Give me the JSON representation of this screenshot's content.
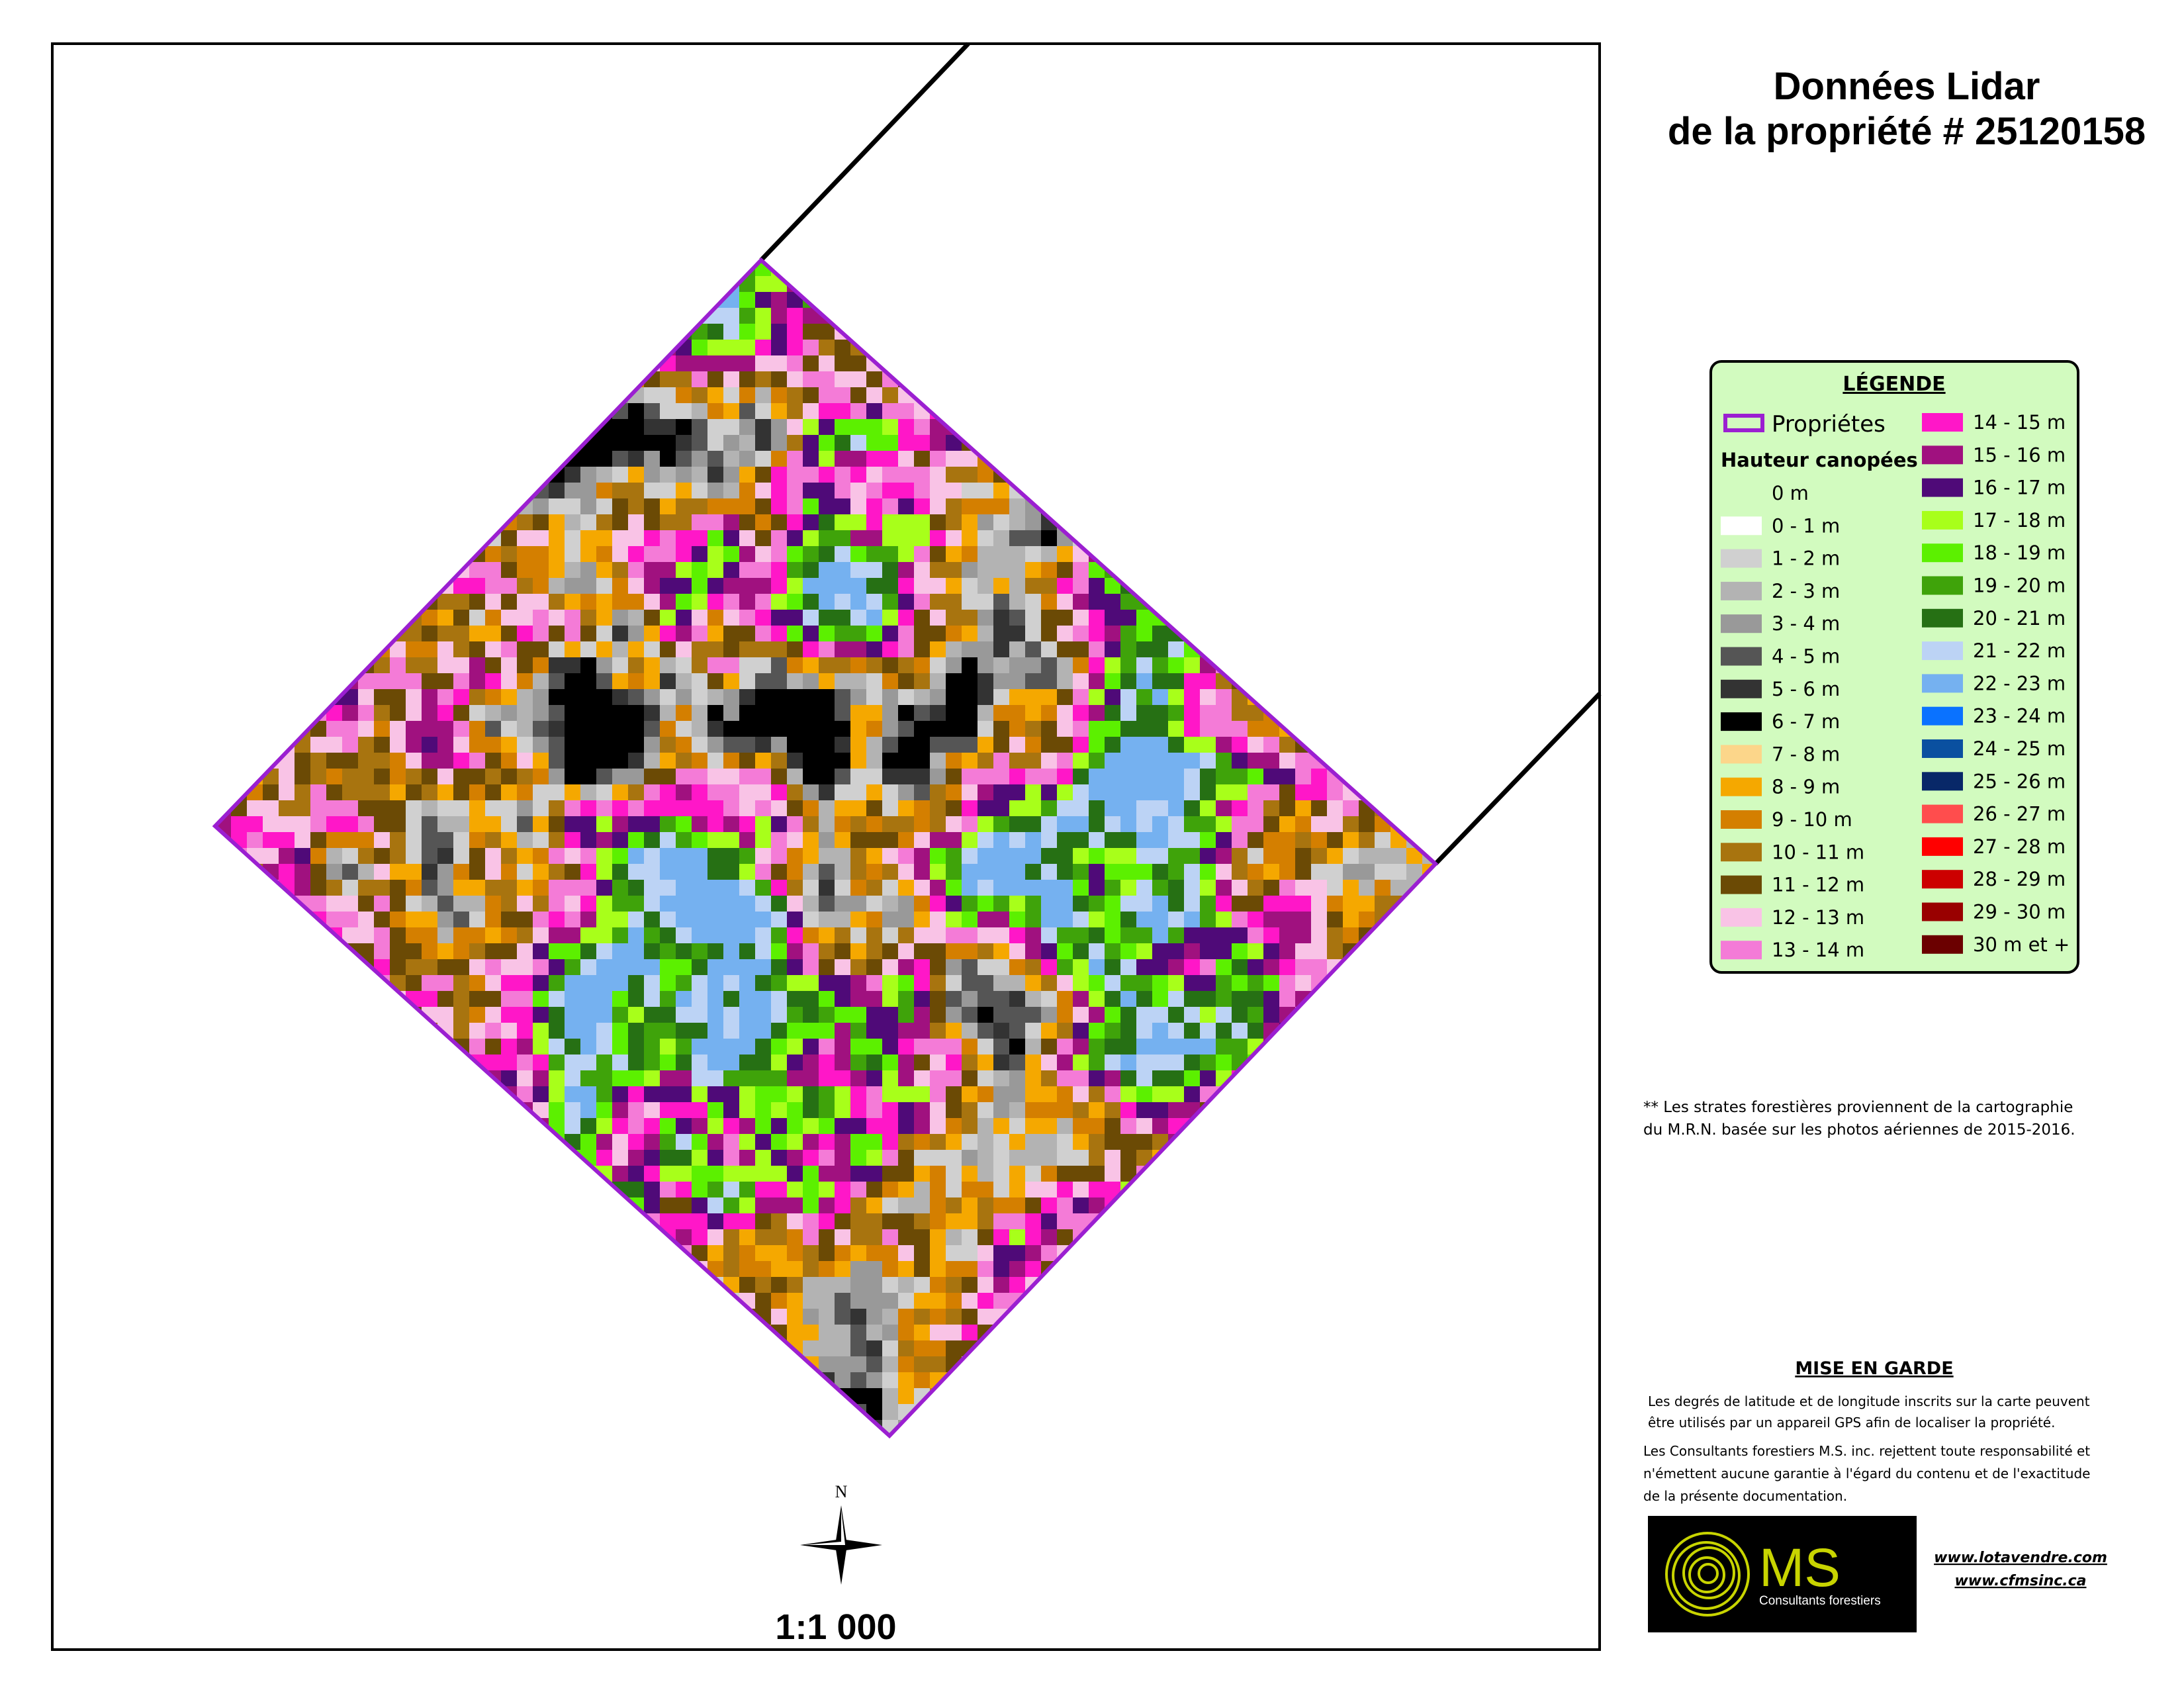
{
  "title": [
    "Données Lidar",
    "de la propriété # 25120158"
  ],
  "legend": {
    "title": "LÉGENDE",
    "boundary": {
      "label": "Propriétes",
      "color": "#9b1fd1"
    },
    "heading": "Hauteur canopées",
    "columns": [
      [
        {
          "label": "0 m"
        },
        {
          "label": "0 - 1 m",
          "color": "#ffffff"
        },
        {
          "label": "1 - 2 m",
          "color": "#d0d0d0"
        },
        {
          "label": "2 - 3 m",
          "color": "#b3b3b3"
        },
        {
          "label": "3 - 4 m",
          "color": "#999999"
        },
        {
          "label": "4 - 5 m",
          "color": "#555555"
        },
        {
          "label": "5 - 6 m",
          "color": "#333333"
        },
        {
          "label": "6 - 7 m",
          "color": "#000000"
        },
        {
          "label": "7 - 8 m",
          "color": "#fcd68a"
        },
        {
          "label": "8 - 9 m",
          "color": "#f5a800"
        },
        {
          "label": "9 - 10 m",
          "color": "#d47f00"
        },
        {
          "label": "10 - 11 m",
          "color": "#a8740f"
        },
        {
          "label": "11 - 12 m",
          "color": "#6b4a05"
        },
        {
          "label": "12 - 13 m",
          "color": "#f9c3e6"
        },
        {
          "label": "13 - 14 m",
          "color": "#f47bd7"
        }
      ],
      [
        {
          "label": "14 - 15 m",
          "color": "#ff17c8"
        },
        {
          "label": "15 - 16 m",
          "color": "#a0117f"
        },
        {
          "label": "16 - 17 m",
          "color": "#4f0a78"
        },
        {
          "label": "17 - 18 m",
          "color": "#a8ff1a"
        },
        {
          "label": "18 - 19 m",
          "color": "#5cf000"
        },
        {
          "label": "19 - 20 m",
          "color": "#3fa30a"
        },
        {
          "label": "20 - 21 m",
          "color": "#267014"
        },
        {
          "label": "21 - 22 m",
          "color": "#bcd3f5"
        },
        {
          "label": "22 - 23 m",
          "color": "#75b1f0"
        },
        {
          "label": "23 - 24 m",
          "color": "#0a72ff"
        },
        {
          "label": "24 - 25 m",
          "color": "#0a50a0"
        },
        {
          "label": "25 - 26 m",
          "color": "#082868"
        },
        {
          "label": "26 - 27 m",
          "color": "#ff4d4d"
        },
        {
          "label": "27 - 28 m",
          "color": "#ff0000"
        },
        {
          "label": "28 - 29 m",
          "color": "#cc0000"
        },
        {
          "label": "29 - 30 m",
          "color": "#990000"
        },
        {
          "label": "30 m et +",
          "color": "#6b0000"
        }
      ]
    ]
  },
  "note": [
    "** Les strates forestières proviennent de la cartographie",
    "du M.R.N.  basée sur les photos aériennes  de 2015-2016."
  ],
  "warning": {
    "title": "MISE EN GARDE",
    "lines": [
      "Les degrés de latitude et de longitude inscrits sur la carte peuvent",
      "être utilisés par un appareil GPS afin de localiser la propriété.",
      "Les Consultants forestiers M.S. inc. rejettent toute responsabilité et",
      "n'émettent aucune garantie à l'égard du contenu et de l'exactitude",
      "de la présente documentation."
    ]
  },
  "logo": {
    "name": "MS",
    "subtitle": "Consultants forestiers"
  },
  "links": [
    "www.lotavendre.com",
    "www.cfmsinc.ca"
  ],
  "north": "N",
  "scale": "1:1 000"
}
